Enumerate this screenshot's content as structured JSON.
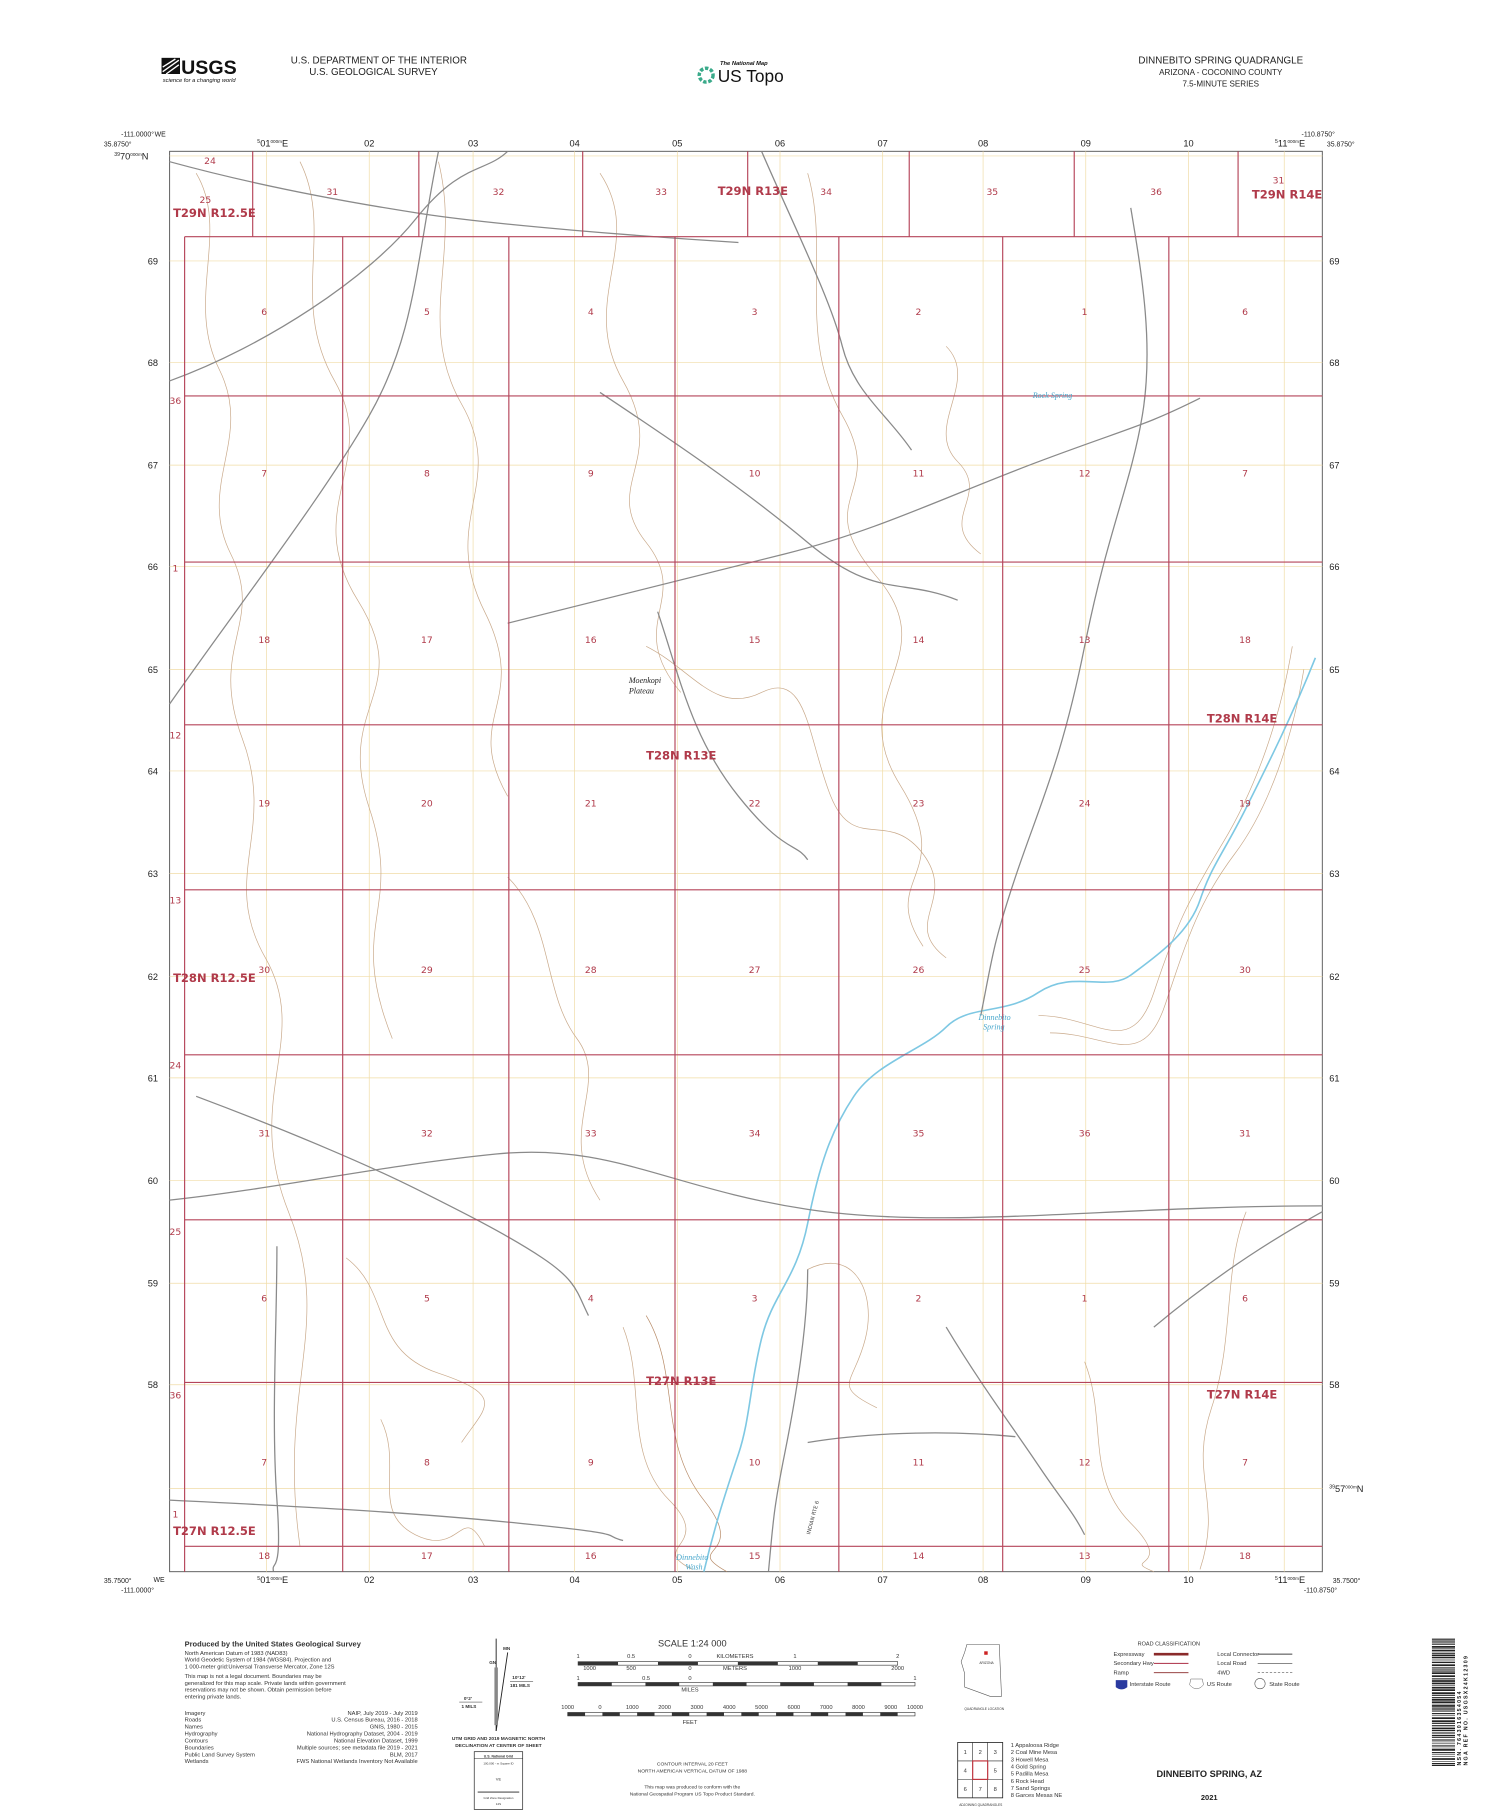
{
  "header": {
    "logo_text": "USGS",
    "logo_tagline": "science for a changing world",
    "department": "U.S. DEPARTMENT OF THE INTERIOR",
    "survey": "U.S. GEOLOGICAL SURVEY",
    "national_map": "The National Map",
    "us_topo": "US Topo",
    "quad_title": "DINNEBITO SPRING QUADRANGLE",
    "state_county": "ARIZONA - COCONINO COUNTY",
    "series": "7.5-MINUTE SERIES"
  },
  "corners": {
    "nw_lon": "-111.0000°",
    "nw_lat": "35.8750°",
    "ne_lon": "-110.8750°",
    "ne_lat": "35.8750°",
    "sw_lon": "-111.0000°",
    "sw_lat": "35.7500°",
    "se_lon": "-110.8750°",
    "se_lat": "35.7500°",
    "we_label": "WE",
    "north_first": {
      "prefix": "39",
      "main": "70",
      "sup": "000m",
      "suffix": "N"
    },
    "north_last": {
      "prefix": "39",
      "main": "57",
      "sup": "000m",
      "suffix": "N"
    },
    "east_first": {
      "prefix": "5",
      "main": "01",
      "sup": "000m",
      "suffix": "E"
    },
    "east_last": {
      "prefix": "5",
      "main": "11",
      "sup": "000m",
      "suffix": "E"
    }
  },
  "eastings": [
    "02",
    "03",
    "04",
    "05",
    "06",
    "07",
    "08",
    "09",
    "10"
  ],
  "northings": [
    "69",
    "68",
    "67",
    "66",
    "65",
    "64",
    "63",
    "62",
    "61",
    "60",
    "59",
    "58"
  ],
  "sections": {
    "top_row": [
      "24",
      "25",
      "31",
      "32",
      "33",
      "34",
      "35",
      "36",
      "31"
    ],
    "left_col": [
      "36",
      "1",
      "12",
      "13",
      "24",
      "25",
      "36",
      "1"
    ],
    "grid": [
      [
        "6",
        "5",
        "4",
        "3",
        "2",
        "1",
        "6"
      ],
      [
        "7",
        "8",
        "9",
        "10",
        "11",
        "12",
        "7"
      ],
      [
        "18",
        "17",
        "16",
        "15",
        "14",
        "13",
        "18"
      ],
      [
        "19",
        "20",
        "21",
        "22",
        "23",
        "24",
        "19"
      ],
      [
        "30",
        "29",
        "28",
        "27",
        "26",
        "25",
        "30"
      ],
      [
        "31",
        "32",
        "33",
        "34",
        "35",
        "36",
        "31"
      ],
      [
        "6",
        "5",
        "4",
        "3",
        "2",
        "1",
        "6"
      ],
      [
        "7",
        "8",
        "9",
        "10",
        "11",
        "12",
        "7"
      ],
      [
        "18",
        "17",
        "16",
        "15",
        "14",
        "13",
        "18"
      ]
    ]
  },
  "townships": [
    "T29N R12.5E",
    "T29N R13E",
    "T29N R14E",
    "T28N R14E",
    "T28N R13E",
    "T28N R12.5E",
    "T27N R13E",
    "T27N R14E",
    "T27N R12.5E"
  ],
  "places": {
    "plateau_1": "Moenkopi",
    "plateau_2": "Plateau",
    "rock_spring": "Rock Spring",
    "spring_1": "Dinnebito",
    "spring_2": "Spring",
    "wash_1": "Dinnebito",
    "wash_2": "Wash",
    "route_label": "INDIAN RTE 6"
  },
  "footer": {
    "produced_by": "Produced by the United States Geological Survey",
    "datum_lines": [
      "North American Datum of 1983 (NAD83)",
      "World Geodetic System of 1984 (WGS84). Projection and",
      "1 000-meter grid:Universal Transverse Mercator, Zone 12S"
    ],
    "legal_lines": [
      "This map is not a legal document. Boundaries may be",
      "generalized for this map scale. Private lands within government",
      "reservations may not be shown. Obtain permission before",
      "entering private lands."
    ],
    "credits": [
      {
        "k": "Imagery",
        "v": "NAIP, July 2019 - July 2019"
      },
      {
        "k": "Roads",
        "v": "U.S. Census Bureau, 2016 - 2018"
      },
      {
        "k": "Names",
        "v": "GNIS, 1980 - 2015"
      },
      {
        "k": "Hydrography",
        "v": "National Hydrography Dataset, 2004 - 2019"
      },
      {
        "k": "Contours",
        "v": "National Elevation Dataset, 1999"
      },
      {
        "k": "Boundaries",
        "v": "Multiple sources; see metadata file 2019 - 2021"
      },
      {
        "k": "Public Land Survey System",
        "v": "BLM, 2017"
      },
      {
        "k": "Wetlands",
        "v": "FWS National Wetlands Inventory Not Available"
      }
    ],
    "declination": {
      "mn": "MN",
      "gn": "GN",
      "right_top": "10°12'",
      "right_bottom": "181 MILS",
      "left_top": "0°2'",
      "left_bottom": "1 MILS",
      "caption_1": "UTM GRID AND 2019 MAGNETIC NORTH",
      "caption_2": "DECLINATION AT CENTER OF SHEET"
    },
    "grid_box": {
      "title": "U.S. National Grid",
      "sub": "100,000 - m Square ID",
      "square": "VE",
      "zone_label": "Grid Zone Designation",
      "zone": "12S"
    },
    "scale": {
      "title": "SCALE 1:24 000",
      "km_ticks": [
        "1",
        "0.5",
        "0",
        "1",
        "2"
      ],
      "km_unit": "KILOMETERS",
      "m_ticks": [
        "1000",
        "500",
        "0",
        "1000",
        "2000"
      ],
      "m_unit": "METERS",
      "mi_ticks": [
        "1",
        "0.5",
        "0",
        "1"
      ],
      "mi_unit": "MILES",
      "ft_ticks": [
        "1000",
        "0",
        "1000",
        "2000",
        "3000",
        "4000",
        "5000",
        "6000",
        "7000",
        "8000",
        "9000",
        "10000"
      ],
      "ft_unit": "FEET"
    },
    "contour_1": "CONTOUR INTERVAL 20 FEET",
    "contour_2": "NORTH AMERICAN VERTICAL DATUM OF 1988",
    "conform_1": "This map was produced to conform with the",
    "conform_2": "National Geospatial Program US Topo Product Standard.",
    "state_name": "ARIZONA",
    "quad_location": "QUADRANGLE LOCATION",
    "adjoining_numbers": [
      "1",
      "2",
      "3",
      "4",
      "5",
      "6",
      "7",
      "8"
    ],
    "adjoining": [
      "1 Appaloosa Ridge",
      "2 Coal Mine Mesa",
      "3 Howell Mesa",
      "4 Gold Spring",
      "5 Padilla Mesa",
      "6 Rock Head",
      "7 Sand Springs",
      "8 Garces Mesas NE"
    ],
    "adjoining_label": "ADJOINING QUADRANGLES",
    "road_class": {
      "title": "ROAD CLASSIFICATION",
      "left": [
        "Expressway",
        "Secondary Hwy",
        "Ramp"
      ],
      "right": [
        "Local Connector",
        "Local Road",
        "4WD"
      ],
      "shields": [
        "Interstate Route",
        "US Route",
        "State Route"
      ]
    },
    "name_bottom": "DINNEBITO SPRING,  AZ",
    "year": "2021",
    "barcode_nsn": "NSN. 7643016354054",
    "barcode_nga": "NGA REF NO. USGSX24K12309"
  },
  "colors": {
    "section_lines": "#b5455a",
    "utm_grid": "#f0dca6",
    "contours": "#c9a98a",
    "roads": "#8a8a8a",
    "water": "#7ec8e3"
  }
}
